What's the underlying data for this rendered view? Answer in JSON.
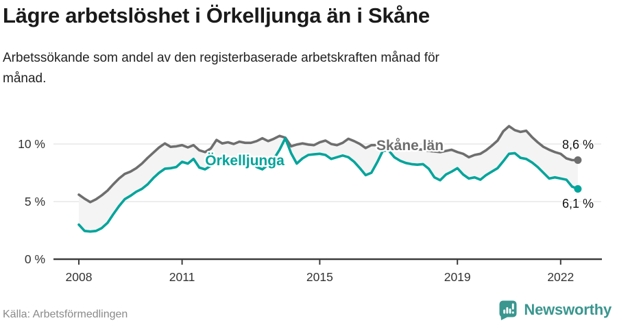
{
  "header": {
    "title": "Lägre arbetslöshet i Örkelljunga än i Skåne",
    "subtitle": "Arbetssökande som andel av den registerbaserade arbetskraften månad för\nmånad."
  },
  "chart_data": {
    "type": "line",
    "title": "Lägre arbetslöshet i Örkelljunga än i Skåne",
    "subtitle": "Arbetssökande som andel av den registerbaserade arbetskraften månad för månad.",
    "unit": "%",
    "x_start_year": 2008,
    "x_step_years": 0.16667,
    "x_end_year": 2022.5,
    "x_ticks": [
      2008,
      2011,
      2015,
      2019,
      2022
    ],
    "y_ticks": [
      {
        "label": "10 %",
        "value": 10
      },
      {
        "label": "5 %",
        "value": 5
      },
      {
        "label": "0 %",
        "value": 0
      }
    ],
    "ylim": [
      0,
      12.6
    ],
    "grid": "horizontal",
    "legend_position": "inline-labels",
    "band_fill": "#f4f4f4",
    "series": [
      {
        "name": "Skåne län",
        "color": "#6e6e6e",
        "end_label": "8,6 %",
        "end_value": 8.6,
        "values": [
          5.6,
          5.25,
          4.95,
          5.2,
          5.55,
          5.95,
          6.5,
          7.0,
          7.4,
          7.6,
          7.9,
          8.3,
          8.8,
          9.25,
          9.7,
          10.05,
          9.75,
          9.8,
          9.9,
          9.7,
          9.9,
          9.45,
          9.3,
          9.6,
          10.35,
          10.05,
          10.15,
          10.0,
          10.2,
          10.1,
          10.1,
          10.25,
          10.5,
          10.25,
          10.45,
          10.7,
          10.55,
          9.8,
          9.95,
          10.05,
          9.95,
          9.9,
          10.15,
          10.3,
          10.0,
          9.9,
          10.1,
          10.45,
          10.25,
          10.0,
          9.65,
          9.9,
          9.9,
          9.85,
          9.8,
          9.75,
          9.7,
          9.65,
          9.6,
          9.55,
          9.5,
          9.4,
          9.35,
          9.3,
          9.4,
          9.5,
          9.3,
          9.15,
          8.85,
          9.05,
          9.15,
          9.45,
          9.85,
          10.3,
          11.1,
          11.55,
          11.2,
          11.05,
          11.15,
          10.6,
          10.15,
          9.75,
          9.5,
          9.3,
          9.15,
          8.75,
          8.6,
          8.6
        ]
      },
      {
        "name": "Örkelljunga",
        "color": "#00a49b",
        "end_label": "6,1 %",
        "end_value": 6.1,
        "values": [
          3.0,
          2.45,
          2.4,
          2.45,
          2.7,
          3.15,
          3.9,
          4.6,
          5.2,
          5.5,
          5.85,
          6.1,
          6.5,
          7.05,
          7.5,
          7.85,
          7.9,
          8.0,
          8.45,
          8.3,
          8.7,
          7.95,
          7.8,
          8.1,
          8.5,
          8.3,
          8.5,
          8.4,
          8.55,
          8.5,
          8.5,
          8.0,
          7.8,
          8.2,
          8.7,
          9.5,
          10.5,
          9.2,
          8.3,
          8.75,
          9.05,
          9.1,
          9.15,
          9.05,
          8.7,
          8.85,
          9.0,
          8.85,
          8.45,
          7.9,
          7.3,
          7.5,
          8.4,
          9.4,
          9.45,
          8.85,
          8.55,
          8.35,
          8.25,
          8.2,
          8.25,
          7.85,
          7.1,
          6.85,
          7.35,
          7.6,
          7.9,
          7.35,
          7.0,
          7.1,
          6.9,
          7.3,
          7.6,
          7.9,
          8.5,
          9.15,
          9.2,
          8.8,
          8.7,
          8.4,
          8.0,
          7.5,
          7.0,
          7.1,
          7.0,
          6.9,
          6.3,
          6.1
        ]
      }
    ]
  },
  "footer": {
    "source": "Källa: Arbetsförmedlingen",
    "brand": "Newsworthy",
    "brand_color": "#3a968f"
  }
}
